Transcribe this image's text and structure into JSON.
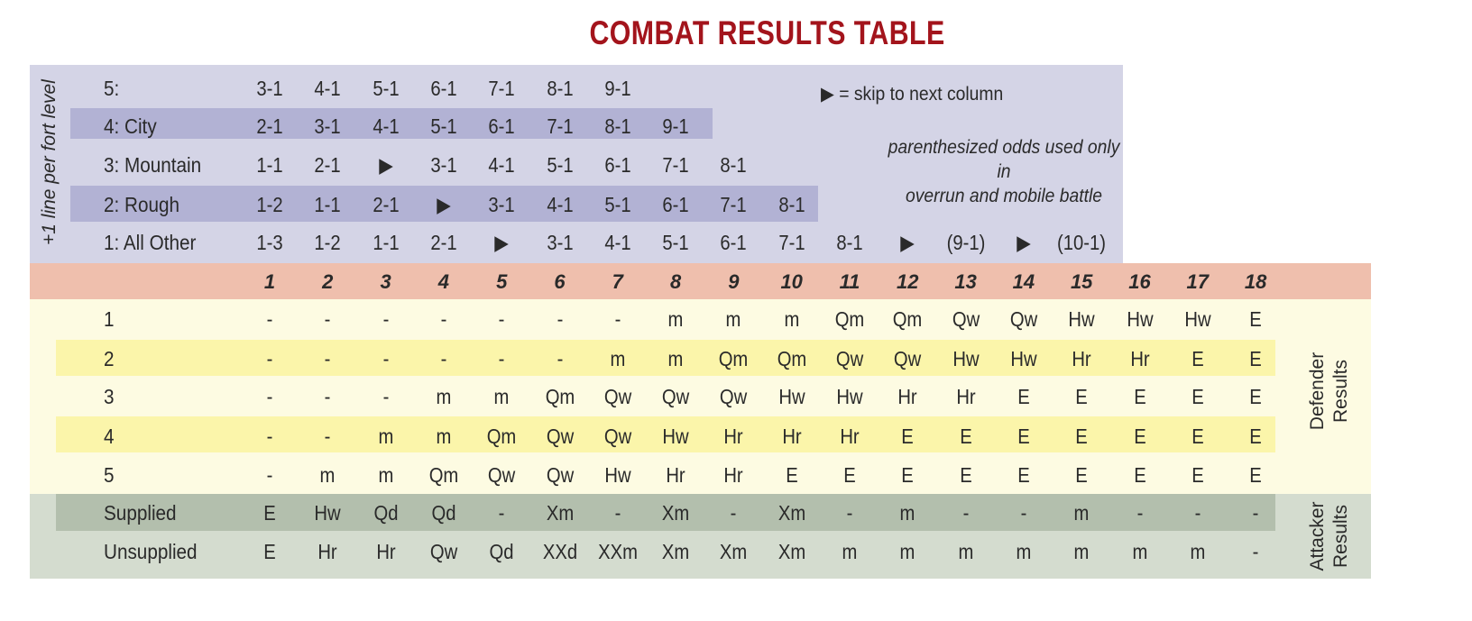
{
  "title": "COMBAT RESULTS TABLE",
  "colors": {
    "title": "#a3141c",
    "terrain_bg": "#d4d4e6",
    "terrain_stripe": "#b2b2d4",
    "header_bg": "#efbfad",
    "defender_bg": "#fdfbe2",
    "defender_stripe": "#fbf5aa",
    "attacker_bg": "#d4dccf",
    "attacker_stripe": "#b3bfad"
  },
  "fort_note": "+1 line per fort level",
  "legend": {
    "skip_symbol": "▶",
    "skip_text": "= skip to next column"
  },
  "parenthesized_note": [
    "parenthesized odds used only in",
    "overrun and mobile battle"
  ],
  "terrain_rows": [
    {
      "label": "5:",
      "odds": [
        "3-1",
        "4-1",
        "5-1",
        "6-1",
        "7-1",
        "8-1",
        "9-1"
      ]
    },
    {
      "label": "4: City",
      "odds": [
        "2-1",
        "3-1",
        "4-1",
        "5-1",
        "6-1",
        "7-1",
        "8-1",
        "9-1"
      ]
    },
    {
      "label": "3: Mountain",
      "odds": [
        "1-1",
        "2-1",
        "▶",
        "3-1",
        "4-1",
        "5-1",
        "6-1",
        "7-1",
        "8-1"
      ]
    },
    {
      "label": "2: Rough",
      "odds": [
        "1-2",
        "1-1",
        "2-1",
        "▶",
        "3-1",
        "4-1",
        "5-1",
        "6-1",
        "7-1",
        "8-1"
      ]
    },
    {
      "label": "1: All Other",
      "odds": [
        "1-3",
        "1-2",
        "1-1",
        "2-1",
        "▶",
        "3-1",
        "4-1",
        "5-1",
        "6-1",
        "7-1",
        "8-1",
        "▶",
        "(9-1)",
        "▶",
        "(10-1)"
      ]
    }
  ],
  "columns": [
    "1",
    "2",
    "3",
    "4",
    "5",
    "6",
    "7",
    "8",
    "9",
    "10",
    "11",
    "12",
    "13",
    "14",
    "15",
    "16",
    "17",
    "18"
  ],
  "defender_label": [
    "Defender",
    "Results"
  ],
  "defender_rows": [
    {
      "label": "1",
      "results": [
        "-",
        "-",
        "-",
        "-",
        "-",
        "-",
        "-",
        "m",
        "m",
        "m",
        "Qm",
        "Qm",
        "Qw",
        "Qw",
        "Hw",
        "Hw",
        "Hw",
        "E"
      ]
    },
    {
      "label": "2",
      "results": [
        "-",
        "-",
        "-",
        "-",
        "-",
        "-",
        "m",
        "m",
        "Qm",
        "Qm",
        "Qw",
        "Qw",
        "Hw",
        "Hw",
        "Hr",
        "Hr",
        "E",
        "E"
      ]
    },
    {
      "label": "3",
      "results": [
        "-",
        "-",
        "-",
        "m",
        "m",
        "Qm",
        "Qw",
        "Qw",
        "Qw",
        "Hw",
        "Hw",
        "Hr",
        "Hr",
        "E",
        "E",
        "E",
        "E",
        "E"
      ]
    },
    {
      "label": "4",
      "results": [
        "-",
        "-",
        "m",
        "m",
        "Qm",
        "Qw",
        "Qw",
        "Hw",
        "Hr",
        "Hr",
        "Hr",
        "E",
        "E",
        "E",
        "E",
        "E",
        "E",
        "E"
      ]
    },
    {
      "label": "5",
      "results": [
        "-",
        "m",
        "m",
        "Qm",
        "Qw",
        "Qw",
        "Hw",
        "Hr",
        "Hr",
        "E",
        "E",
        "E",
        "E",
        "E",
        "E",
        "E",
        "E",
        "E"
      ]
    }
  ],
  "attacker_label": [
    "Attacker",
    "Results"
  ],
  "attacker_rows": [
    {
      "label": "Supplied",
      "results": [
        "E",
        "Hw",
        "Qd",
        "Qd",
        "-",
        "Xm",
        "-",
        "Xm",
        "-",
        "Xm",
        "-",
        "m",
        "-",
        "-",
        "m",
        "-",
        "-",
        "-"
      ]
    },
    {
      "label": "Unsupplied",
      "results": [
        "E",
        "Hr",
        "Hr",
        "Qw",
        "Qd",
        "XXd",
        "XXm",
        "Xm",
        "Xm",
        "Xm",
        "m",
        "m",
        "m",
        "m",
        "m",
        "m",
        "m",
        "-"
      ]
    }
  ]
}
